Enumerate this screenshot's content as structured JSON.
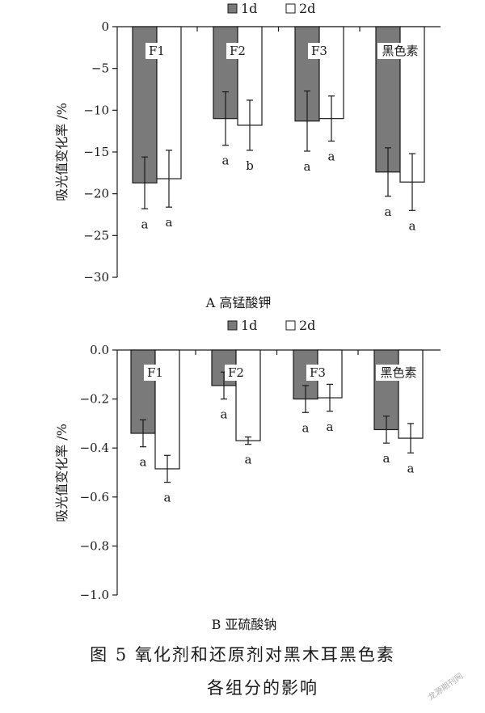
{
  "colors": {
    "series_1d": "#7a7a7a",
    "series_2d": "#ffffff",
    "stroke": "#1a1a1a"
  },
  "caption": {
    "line1": "图 5   氧化剂和还原剂对黑木耳黑色素",
    "line2": "各组分的影响"
  },
  "watermark": "龙源期刊网",
  "chart_data": [
    {
      "type": "bar",
      "subtitle": "A 高锰酸钾",
      "ylabel": "吸光值变化率 /%",
      "ylim": [
        -30,
        0
      ],
      "yticks": [
        0,
        -5,
        -10,
        -15,
        -20,
        -25,
        -30
      ],
      "ytick_labels": [
        "0",
        "−5",
        "−10",
        "−15",
        "−20",
        "−25",
        "−30"
      ],
      "categories": [
        "F1",
        "F2",
        "F3",
        "黑色素"
      ],
      "series": [
        {
          "name": "1d",
          "values": [
            -18.7,
            -11.0,
            -11.3,
            -17.4
          ],
          "errors": [
            3.1,
            3.2,
            3.6,
            2.9
          ],
          "sig": [
            "a",
            "a",
            "a",
            "a"
          ]
        },
        {
          "name": "2d",
          "values": [
            -18.2,
            -11.8,
            -11.0,
            -18.6
          ],
          "errors": [
            3.4,
            3.0,
            2.7,
            3.4
          ],
          "sig": [
            "a",
            "b",
            "a",
            "a"
          ]
        }
      ]
    },
    {
      "type": "bar",
      "subtitle": "B 亚硫酸钠",
      "ylabel": "吸光值变化率 /%",
      "ylim": [
        -1.0,
        0.0
      ],
      "yticks": [
        0.0,
        -0.2,
        -0.4,
        -0.6,
        -0.8,
        -1.0
      ],
      "ytick_labels": [
        "0.0",
        "−0.2",
        "−0.4",
        "−0.6",
        "−0.8",
        "−1.0"
      ],
      "categories": [
        "F1",
        "F2",
        "F3",
        "黑色素"
      ],
      "series": [
        {
          "name": "1d",
          "values": [
            -0.34,
            -0.145,
            -0.2,
            -0.325
          ],
          "errors": [
            0.055,
            0.055,
            0.055,
            0.055
          ],
          "sig": [
            "a",
            "a",
            "a",
            "a"
          ]
        },
        {
          "name": "2d",
          "values": [
            -0.485,
            -0.37,
            -0.195,
            -0.36
          ],
          "errors": [
            0.055,
            0.015,
            0.055,
            0.06
          ],
          "sig": [
            "a",
            "a",
            "a",
            "a"
          ]
        }
      ]
    }
  ]
}
